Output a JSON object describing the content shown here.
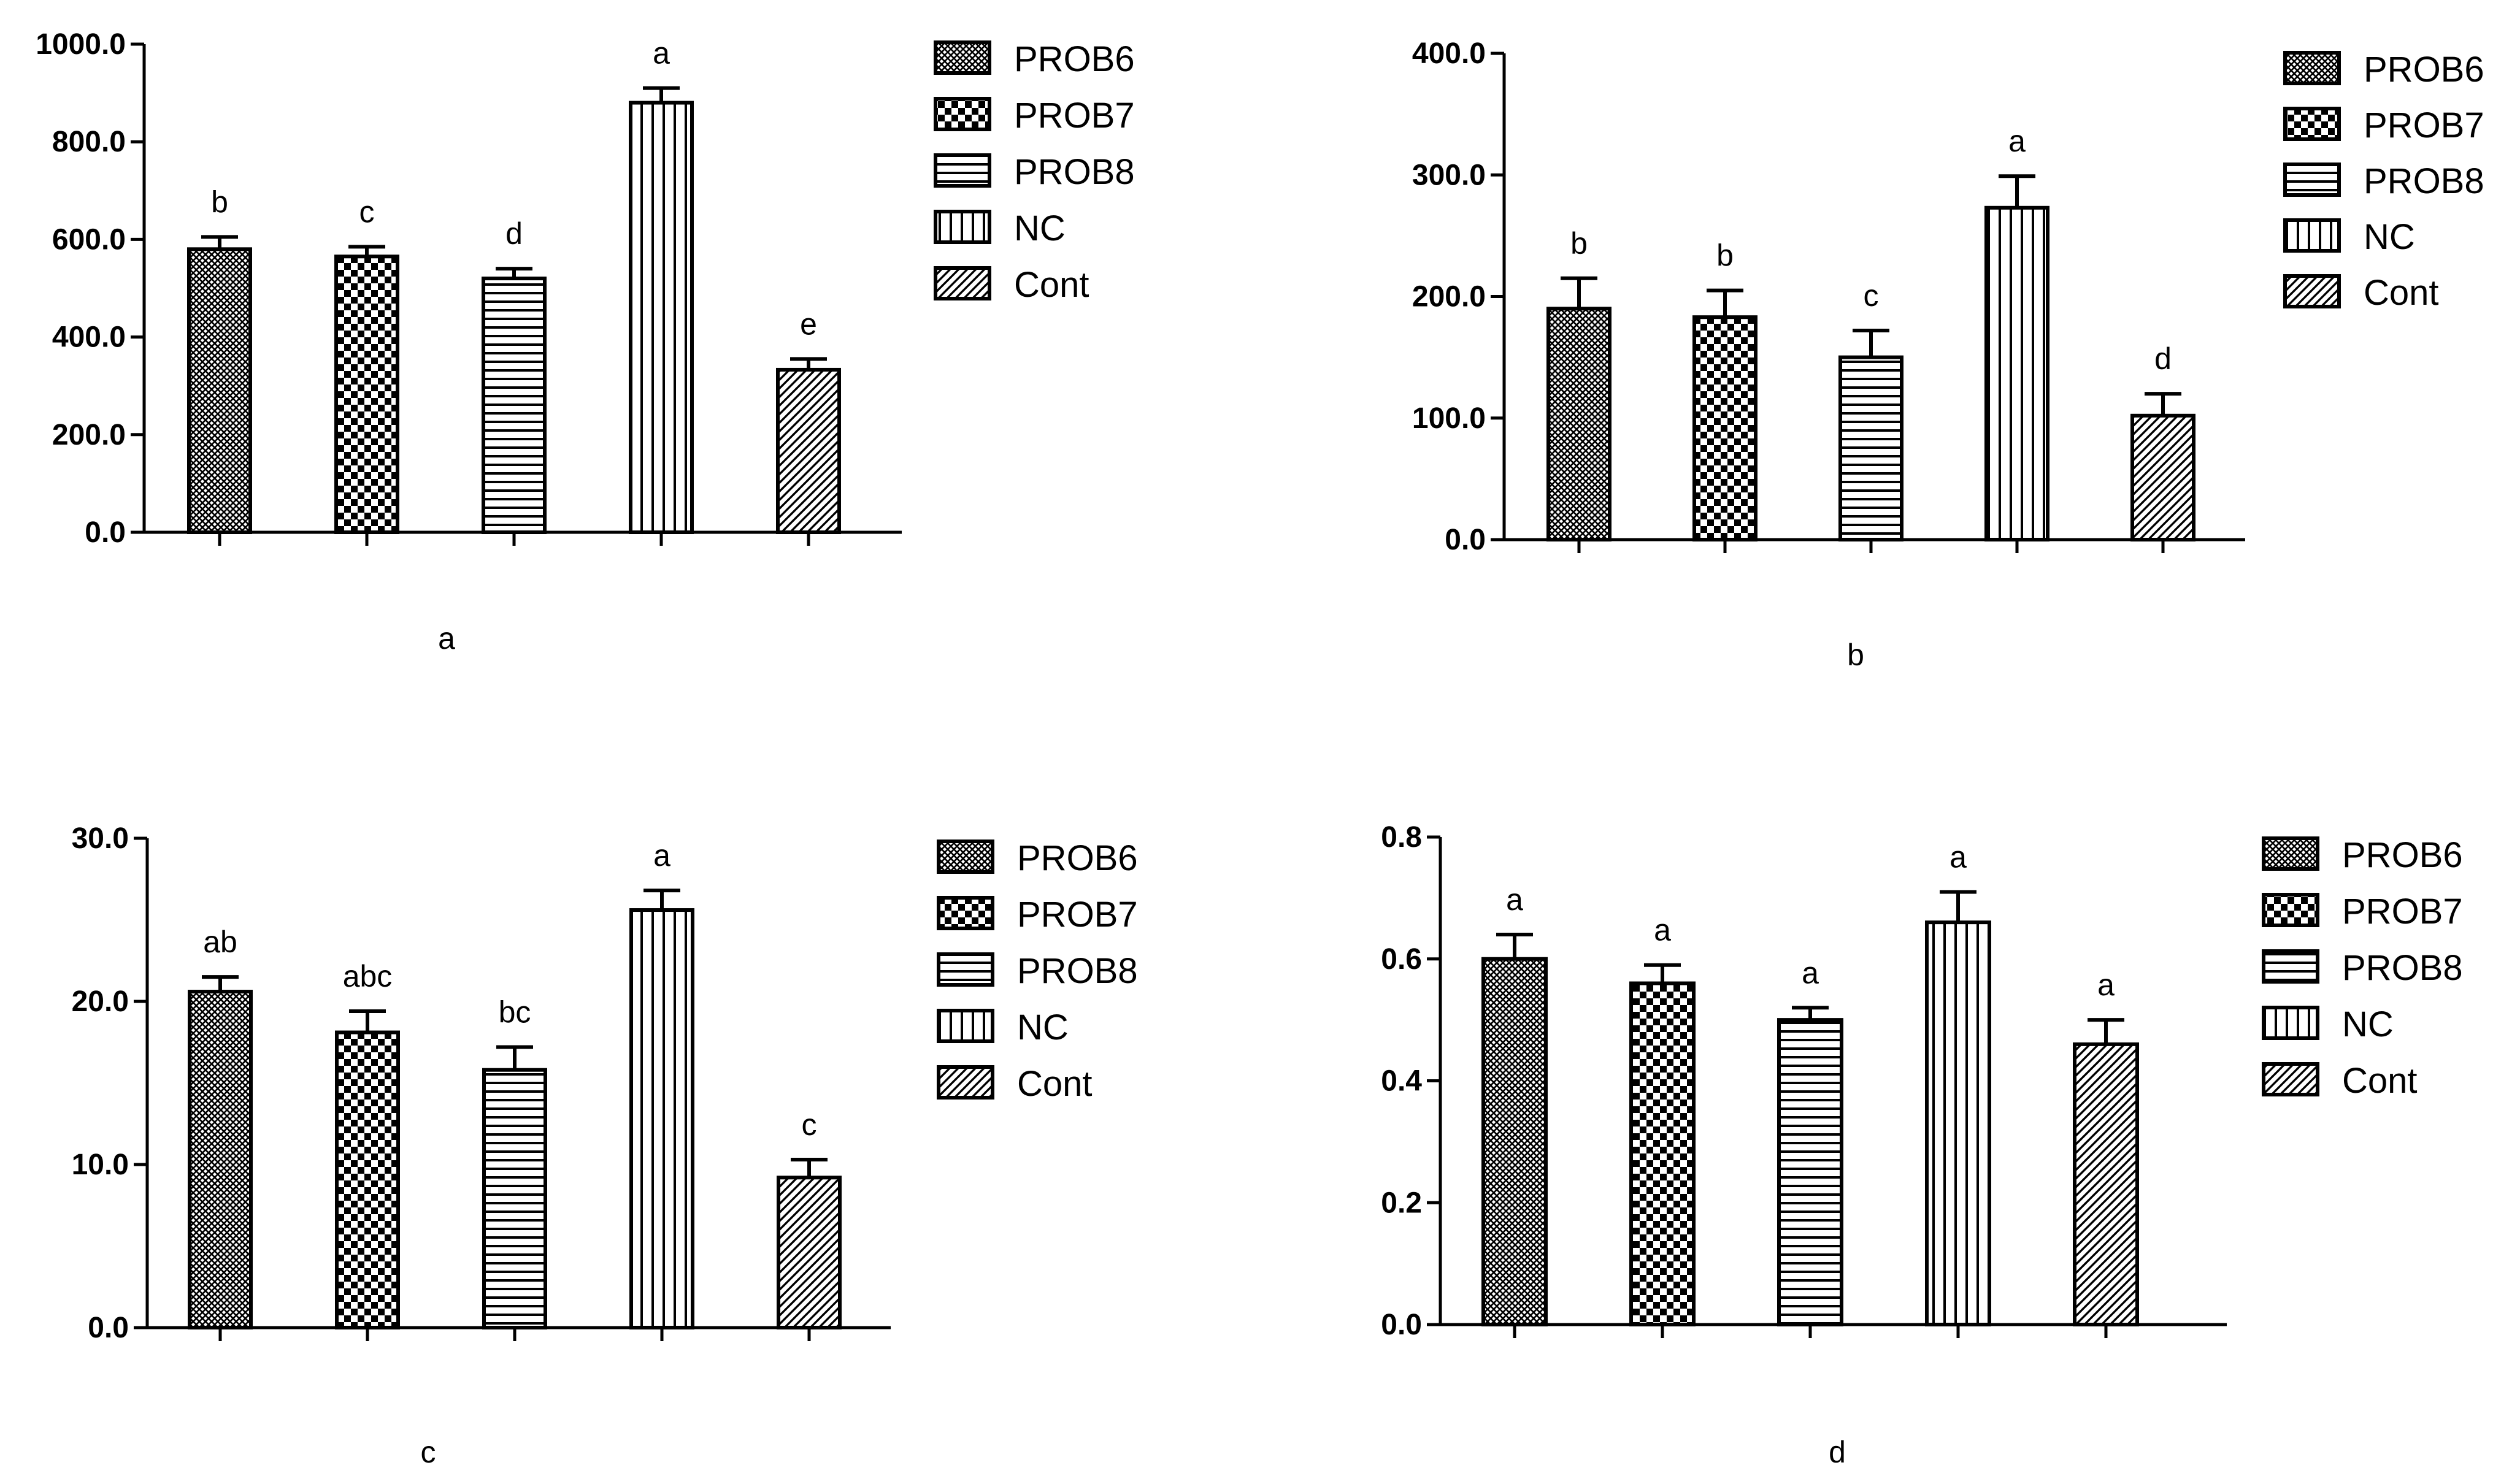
{
  "figure": {
    "legend": [
      "PROB6",
      "PROB7",
      "PROB8",
      "NC",
      "Cont"
    ],
    "patterns": [
      "dense-crosshatch",
      "checkerboard",
      "horizontal-stripes",
      "vertical-stripes",
      "diagonal-hatch"
    ]
  },
  "chart_data": [
    {
      "type": "bar",
      "panel": "a",
      "caption": "a",
      "categories": [
        "PROB6",
        "PROB7",
        "PROB8",
        "NC",
        "Cont"
      ],
      "values": [
        580,
        565,
        520,
        880,
        333
      ],
      "errors": [
        25,
        20,
        20,
        30,
        22
      ],
      "significance": [
        "b",
        "c",
        "d",
        "a",
        "e"
      ],
      "ylim": [
        0,
        1000
      ],
      "yticks": [
        0,
        200,
        400,
        600,
        800,
        1000
      ],
      "ytick_labels": [
        "0.0",
        "200.0",
        "400.0",
        "600.0",
        "800.0",
        "1000.0"
      ]
    },
    {
      "type": "bar",
      "panel": "b",
      "caption": "b",
      "categories": [
        "PROB6",
        "PROB7",
        "PROB8",
        "NC",
        "Cont"
      ],
      "values": [
        190,
        183,
        150,
        273,
        102
      ],
      "errors": [
        25,
        22,
        22,
        26,
        18
      ],
      "significance": [
        "b",
        "b",
        "c",
        "a",
        "d"
      ],
      "ylim": [
        0,
        400
      ],
      "yticks": [
        0,
        100,
        200,
        300,
        400
      ],
      "ytick_labels": [
        "0.0",
        "100.0",
        "200.0",
        "300.0",
        "400.0"
      ]
    },
    {
      "type": "bar",
      "panel": "c",
      "caption": "c",
      "categories": [
        "PROB6",
        "PROB7",
        "PROB8",
        "NC",
        "Cont"
      ],
      "values": [
        20.6,
        18.1,
        15.8,
        25.6,
        9.2
      ],
      "errors": [
        0.9,
        1.3,
        1.4,
        1.2,
        1.1
      ],
      "significance": [
        "ab",
        "abc",
        "bc",
        "a",
        "c"
      ],
      "ylim": [
        0,
        30
      ],
      "yticks": [
        0,
        10,
        20,
        30
      ],
      "ytick_labels": [
        "0.0",
        "10.0",
        "20.0",
        "30.0"
      ]
    },
    {
      "type": "bar",
      "panel": "d",
      "caption": "d",
      "categories": [
        "PROB6",
        "PROB7",
        "PROB8",
        "NC",
        "Cont"
      ],
      "values": [
        0.6,
        0.56,
        0.5,
        0.66,
        0.46
      ],
      "errors": [
        0.04,
        0.03,
        0.02,
        0.05,
        0.04
      ],
      "significance": [
        "a",
        "a",
        "a",
        "a",
        "a"
      ],
      "ylim": [
        0,
        0.8
      ],
      "yticks": [
        0,
        0.2,
        0.4,
        0.6,
        0.8
      ],
      "ytick_labels": [
        "0.0",
        "0.2",
        "0.4",
        "0.6",
        "0.8"
      ]
    }
  ]
}
